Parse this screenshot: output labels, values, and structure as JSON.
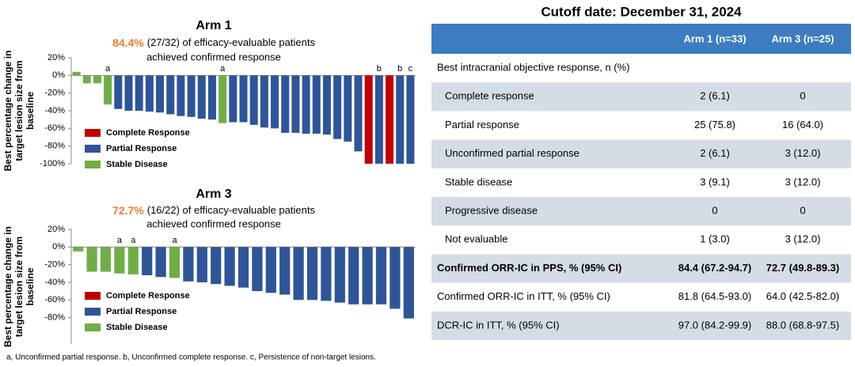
{
  "chart_data": [
    {
      "type": "waterfall",
      "title": "Arm 1",
      "subtitle_highlight": "84.4%",
      "subtitle_line1": "(27/32) of efficacy-evaluable patients",
      "subtitle_line2": "achieved confirmed response",
      "ylabel": [
        "Best percentage change in",
        "target lesion size from",
        "baseline"
      ],
      "ylim": [
        -100,
        20
      ],
      "yticks": [
        {
          "value": 20,
          "label": "20%"
        },
        {
          "value": 0,
          "label": "0%"
        },
        {
          "value": -20,
          "label": "-20%"
        },
        {
          "value": -40,
          "label": "-40%"
        },
        {
          "value": -60,
          "label": "-60%"
        },
        {
          "value": -80,
          "label": "-80%"
        },
        {
          "value": -100,
          "label": "-100%"
        }
      ],
      "series": [
        {
          "name": "Complete Response",
          "color": "#c00000",
          "values": [
            null,
            null,
            null,
            null,
            null,
            null,
            null,
            null,
            null,
            null,
            null,
            null,
            null,
            null,
            null,
            null,
            null,
            null,
            null,
            null,
            null,
            null,
            null,
            null,
            null,
            null,
            null,
            null,
            -100,
            null,
            -100,
            null,
            null
          ]
        },
        {
          "name": "Partial Response",
          "color": "#2f5597",
          "values": [
            null,
            null,
            null,
            null,
            -38,
            -40,
            -40,
            -41,
            -42,
            -44,
            -46,
            -47,
            -49,
            -50,
            null,
            -53,
            -53,
            -56,
            -59,
            -60,
            -65,
            -65,
            -66,
            -66,
            -67,
            -72,
            -75,
            -86,
            null,
            -100,
            null,
            -100,
            -100
          ]
        },
        {
          "name": "Stable Disease",
          "color": "#70ad47",
          "values": [
            4,
            -9,
            -9,
            -33,
            null,
            null,
            null,
            null,
            null,
            null,
            null,
            null,
            null,
            null,
            -54,
            null,
            null,
            null,
            null,
            null,
            null,
            null,
            null,
            null,
            null,
            null,
            null,
            null,
            null,
            null,
            null,
            null,
            null
          ]
        }
      ],
      "annotations": [
        {
          "index": 3,
          "text": "a"
        },
        {
          "index": 14,
          "text": "a"
        },
        {
          "index": 29,
          "text": "b"
        },
        {
          "index": 31,
          "text": "b"
        },
        {
          "index": 32,
          "text": "c"
        }
      ]
    },
    {
      "type": "waterfall",
      "title": "Arm 3",
      "subtitle_highlight": "72.7%",
      "subtitle_line1": "(16/22) of efficacy-evaluable patients",
      "subtitle_line2": "achieved confirmed response",
      "ylabel": [
        "Best percentage change in",
        "target lesion size from",
        "baseline"
      ],
      "ylim": [
        -110,
        20
      ],
      "yticks": [
        {
          "value": 20,
          "label": "20%"
        },
        {
          "value": 0,
          "label": "0%"
        },
        {
          "value": -20,
          "label": "-20%"
        },
        {
          "value": -40,
          "label": "-40%"
        },
        {
          "value": -60,
          "label": "-60%"
        },
        {
          "value": -80,
          "label": "-80%"
        }
      ],
      "series": [
        {
          "name": "Complete Response",
          "color": "#c00000",
          "values": [
            null,
            null,
            null,
            null,
            null,
            null,
            null,
            null,
            null,
            null,
            null,
            null,
            null,
            null,
            null,
            null,
            null,
            null,
            null,
            null,
            null,
            null,
            null,
            null,
            null
          ]
        },
        {
          "name": "Partial Response",
          "color": "#2f5597",
          "values": [
            null,
            null,
            null,
            null,
            null,
            -32,
            -34,
            null,
            -39,
            -40,
            -42,
            -44,
            -46,
            -50,
            -52,
            -54,
            -60,
            -60,
            -61,
            -63,
            -65,
            -65,
            -65,
            -70,
            -81
          ]
        },
        {
          "name": "Stable Disease",
          "color": "#70ad47",
          "values": [
            -5,
            -28,
            -28,
            -30,
            -31,
            null,
            null,
            -35,
            null,
            null,
            null,
            null,
            null,
            null,
            null,
            null,
            null,
            null,
            null,
            null,
            null,
            null,
            null,
            null,
            null
          ]
        }
      ],
      "annotations": [
        {
          "index": 3,
          "text": "a"
        },
        {
          "index": 4,
          "text": "a"
        },
        {
          "index": 7,
          "text": "a"
        }
      ]
    }
  ],
  "footnote": "a, Unconfirmed partial response. b, Unconfirmed complete response. c, Persistence of non-target lesions.",
  "table": {
    "title": "Cutoff date: December 31, 2024",
    "columns": [
      "Arm 1 (n=33)",
      "Arm 3 (n=25)"
    ],
    "section": "Best intracranial objective response, n (%)",
    "rows": [
      {
        "label": "Complete response",
        "values": [
          "2 (6.1)",
          "0"
        ],
        "indent": true
      },
      {
        "label": "Partial response",
        "values": [
          "25 (75.8)",
          "16 (64.0)"
        ],
        "indent": true
      },
      {
        "label": "Unconfirmed partial response",
        "values": [
          "2 (6.1)",
          "3 (12.0)"
        ],
        "indent": true
      },
      {
        "label": "Stable disease",
        "values": [
          "3 (9.1)",
          "3 (12.0)"
        ],
        "indent": true
      },
      {
        "label": "Progressive disease",
        "values": [
          "0",
          "0"
        ],
        "indent": true
      },
      {
        "label": "Not evaluable",
        "values": [
          "1 (3.0)",
          "3 (12.0)"
        ],
        "indent": true
      },
      {
        "label": "Confirmed ORR-IC in PPS, % (95% CI)",
        "values": [
          "84.4 (67.2-94.7)",
          "72.7 (49.8-89.3)"
        ],
        "bold": true
      },
      {
        "label": "Confirmed ORR-IC in ITT, % (95% CI)",
        "values": [
          "81.8 (64.5-93.0)",
          "64.0 (42.5-82.0)"
        ]
      },
      {
        "label": "DCR-IC in ITT, % (95% CI)",
        "values": [
          "97.0 (84.2-99.9)",
          "88.0 (68.8-97.5)"
        ]
      }
    ]
  }
}
